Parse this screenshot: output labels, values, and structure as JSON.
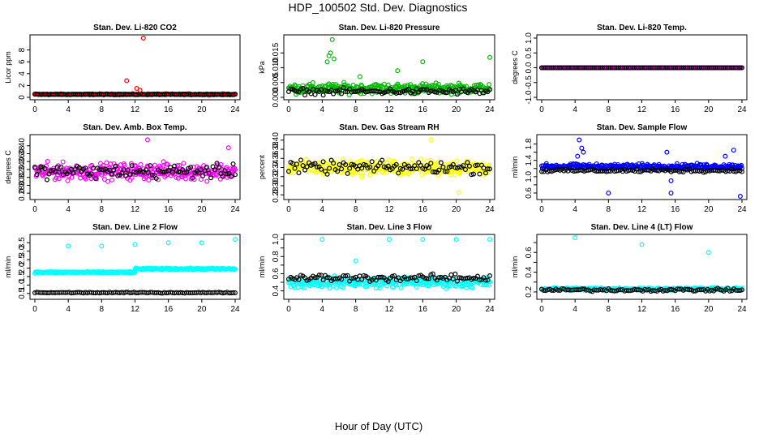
{
  "figure": {
    "title": "HDP_100502  Std. Dev. Diagnostics",
    "xlabel": "Hour of Day (UTC)"
  },
  "chart_data": [
    {
      "type": "scatter",
      "title": "Stan. Dev. Li-820 CO2",
      "ylabel": "Licor ppm",
      "color": "#ff0000",
      "xlim": [
        0,
        24
      ],
      "xticks": [
        0,
        4,
        8,
        12,
        16,
        20,
        24
      ],
      "ylim": [
        0,
        10
      ],
      "yticks": [
        0,
        2,
        4,
        6,
        8
      ],
      "base": 0.5,
      "spread": 0.15,
      "comp_base": 0.5,
      "comp_spread": 0.08,
      "n": 300,
      "spikes": [
        [
          13,
          10
        ],
        [
          11,
          2.8
        ],
        [
          12.2,
          1.5
        ],
        [
          12.6,
          1.2
        ]
      ]
    },
    {
      "type": "scatter",
      "title": "Stan. Dev. Li-820 Pressure",
      "ylabel": "kPa",
      "color": "#00bb00",
      "xlim": [
        0,
        24
      ],
      "xticks": [
        0,
        4,
        8,
        12,
        16,
        20,
        24
      ],
      "ylim": [
        0,
        0.02
      ],
      "yticks": [
        0.0,
        0.005,
        0.01,
        0.015
      ],
      "ytick_labels": [
        "0.000",
        "0.005",
        "0.010",
        "0.015"
      ],
      "base": 0.003,
      "spread": 0.0025,
      "comp_base": 0.002,
      "comp_spread": 0.0015,
      "n": 300,
      "spikes": [
        [
          5.2,
          0.0195
        ],
        [
          4.8,
          0.014
        ],
        [
          5.0,
          0.015
        ],
        [
          5.4,
          0.013
        ],
        [
          4.6,
          0.012
        ],
        [
          16,
          0.012
        ],
        [
          24,
          0.0135
        ],
        [
          8.5,
          0.007
        ],
        [
          13,
          0.009
        ]
      ]
    },
    {
      "type": "scatter",
      "title": "Stan. Dev. Li-820 Temp.",
      "ylabel": "degrees C",
      "color": "#ff00ff",
      "xlim": [
        0,
        24
      ],
      "xticks": [
        0,
        4,
        8,
        12,
        16,
        20,
        24
      ],
      "ylim": [
        -1,
        1
      ],
      "yticks": [
        -1.0,
        -0.5,
        0.0,
        0.5,
        1.0
      ],
      "ytick_labels": [
        "-1.0",
        "-0.5",
        "0.0",
        "0.5",
        "1.0"
      ],
      "base": 0.0,
      "spread": 0.0,
      "comp_base": 0.0,
      "comp_spread": 0.0,
      "n": 300,
      "spikes": []
    },
    {
      "type": "scatter",
      "title": "Stan. Dev. Amb. Box Temp.",
      "ylabel": "degrees C",
      "color": "#ff00ff",
      "xlim": [
        0,
        24
      ],
      "xticks": [
        0,
        4,
        8,
        12,
        16,
        20,
        24
      ],
      "ylim": [
        0.27,
        0.42
      ],
      "yticks": [
        0.28,
        0.3,
        0.32,
        0.34,
        0.36,
        0.38,
        0.4
      ],
      "ytick_labels": [
        "0.28",
        "0.30",
        "0.32",
        "0.34",
        "0.36",
        "0.38",
        "0.40"
      ],
      "base": 0.335,
      "spread": 0.03,
      "comp_base": 0.335,
      "comp_spread": 0.025,
      "n": 300,
      "spikes": [
        [
          13.5,
          0.415
        ],
        [
          23.2,
          0.395
        ]
      ]
    },
    {
      "type": "scatter",
      "title": "Stan. Dev. Gas Stream RH",
      "ylabel": "percent",
      "color": "#ffff00",
      "xlim": [
        0,
        24
      ],
      "xticks": [
        0,
        4,
        8,
        12,
        16,
        20,
        24
      ],
      "ylim": [
        0.275,
        0.405
      ],
      "yticks": [
        0.28,
        0.3,
        0.32,
        0.34,
        0.36,
        0.38,
        0.4
      ],
      "ytick_labels": [
        "0.28",
        "0.30",
        "0.32",
        "0.34",
        "0.36",
        "0.38",
        "0.40"
      ],
      "base": 0.34,
      "spread": 0.025,
      "comp_base": 0.34,
      "comp_spread": 0.02,
      "n": 300,
      "spikes": [
        [
          17,
          0.4
        ],
        [
          20.3,
          0.285
        ]
      ]
    },
    {
      "type": "scatter",
      "title": "Stan. Dev. Sample Flow",
      "ylabel": "ml/min",
      "color": "#0000ff",
      "xlim": [
        0,
        24
      ],
      "xticks": [
        0,
        4,
        8,
        12,
        16,
        20,
        24
      ],
      "ylim": [
        0.5,
        1.95
      ],
      "yticks": [
        0.6,
        0.8,
        1.0,
        1.2,
        1.4,
        1.6,
        1.8
      ],
      "ytick_labels": [
        "0.6",
        "",
        "1.0",
        "",
        "1.4",
        "",
        "1.8"
      ],
      "base": 1.25,
      "spread": 0.09,
      "comp_base": 1.15,
      "comp_spread": 0.06,
      "n": 300,
      "spikes": [
        [
          4.5,
          1.9
        ],
        [
          4.8,
          1.7
        ],
        [
          5.0,
          1.6
        ],
        [
          4.3,
          1.5
        ],
        [
          8,
          0.6
        ],
        [
          15.5,
          0.6
        ],
        [
          23.8,
          0.52
        ],
        [
          15,
          1.6
        ],
        [
          23,
          1.65
        ],
        [
          22,
          1.5
        ],
        [
          15.5,
          0.9
        ]
      ]
    },
    {
      "type": "scatter",
      "title": "Stan. Dev. Line 2 Flow",
      "ylabel": "ml/min",
      "color": "#00ffff",
      "xlim": [
        0,
        24
      ],
      "xticks": [
        0,
        4,
        8,
        12,
        16,
        20,
        24
      ],
      "ylim": [
        0.3,
        3.8
      ],
      "yticks": [
        0.5,
        1.0,
        1.5,
        2.0,
        2.5,
        3.0,
        3.5
      ],
      "ytick_labels": [
        "0.5",
        "1.0",
        "1.5",
        "2.0",
        "2.5",
        "3.0",
        "3.5"
      ],
      "base": 1.75,
      "spread": 0.07,
      "comp_base": 0.55,
      "comp_spread": 0.04,
      "n": 300,
      "step_at": 12,
      "step_base": 1.95,
      "spikes": [
        [
          4,
          3.3
        ],
        [
          8,
          3.3
        ],
        [
          12,
          3.4
        ],
        [
          16,
          3.5
        ],
        [
          20,
          3.5
        ],
        [
          24,
          3.7
        ]
      ]
    },
    {
      "type": "scatter",
      "title": "Stan. Dev. Line 3 Flow",
      "ylabel": "ml/min",
      "color": "#00ffff",
      "xlim": [
        0,
        24
      ],
      "xticks": [
        0,
        4,
        8,
        12,
        16,
        20,
        24
      ],
      "ylim": [
        0.33,
        1.02
      ],
      "yticks": [
        0.4,
        0.5,
        0.6,
        0.7,
        0.8,
        0.9,
        1.0
      ],
      "ytick_labels": [
        "0.4",
        "",
        "0.6",
        "",
        "0.8",
        "",
        "1.0"
      ],
      "base": 0.5,
      "spread": 0.09,
      "comp_base": 0.55,
      "comp_spread": 0.06,
      "n": 300,
      "spikes": [
        [
          4,
          1.0
        ],
        [
          12,
          1.0
        ],
        [
          16,
          1.0
        ],
        [
          20,
          1.0
        ],
        [
          24,
          1.0
        ],
        [
          8,
          0.75
        ]
      ]
    },
    {
      "type": "scatter",
      "title": "Stan. Dev. Line 4 (LT) Flow",
      "ylabel": "ml/min",
      "color": "#00ffff",
      "xlim": [
        0,
        24
      ],
      "xticks": [
        0,
        4,
        8,
        12,
        16,
        20,
        24
      ],
      "ylim": [
        0.15,
        0.75
      ],
      "yticks": [
        0.2,
        0.3,
        0.4,
        0.5,
        0.6,
        0.7
      ],
      "ytick_labels": [
        "0.2",
        "",
        "0.4",
        "",
        "0.6",
        ""
      ],
      "base": 0.23,
      "spread": 0.02,
      "comp_base": 0.22,
      "comp_spread": 0.02,
      "n": 300,
      "spikes": [
        [
          4,
          0.75
        ],
        [
          12,
          0.68
        ],
        [
          20,
          0.6
        ]
      ]
    }
  ]
}
